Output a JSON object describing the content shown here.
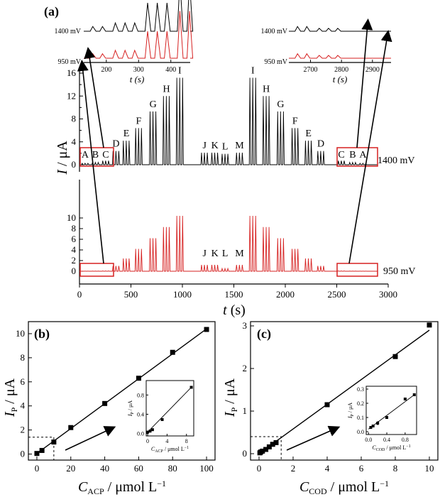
{
  "colors": {
    "black_trace": "#000000",
    "red_trace": "#d62020",
    "box": "#d62020"
  },
  "chart_data": [
    {
      "id": "a",
      "type": "line",
      "panel_label": "(a)",
      "xlabel": "t (s)",
      "ylabel": "I / μA",
      "xlim": [
        0,
        3000
      ],
      "x_ticks": [
        "0",
        "500",
        "1000",
        "1500",
        "2000",
        "2500",
        "3000"
      ],
      "series": [
        {
          "name": "1400 mV",
          "ylim": [
            0,
            16
          ],
          "y_ticks": [
            "0",
            "4",
            "8",
            "12",
            "16"
          ],
          "y_minor_ticks": [
            "2",
            "6",
            "10",
            "14"
          ],
          "injection_groups": [
            {
              "label": "A",
              "t_start": 20,
              "peak": 0.25
            },
            {
              "label": "B",
              "t_start": 120,
              "peak": 0.4
            },
            {
              "label": "C",
              "t_start": 220,
              "peak": 0.7
            },
            {
              "label": "D",
              "t_start": 320,
              "peak": 2.4
            },
            {
              "label": "E",
              "t_start": 420,
              "peak": 4.2
            },
            {
              "label": "F",
              "t_start": 540,
              "peak": 6.4
            },
            {
              "label": "G",
              "t_start": 680,
              "peak": 9.3
            },
            {
              "label": "H",
              "t_start": 810,
              "peak": 12.0
            },
            {
              "label": "I",
              "t_start": 940,
              "peak": 15.2
            },
            {
              "label": "J",
              "t_start": 1180,
              "peak": 2.1
            },
            {
              "label": "K",
              "t_start": 1280,
              "peak": 2.1
            },
            {
              "label": "L",
              "t_start": 1380,
              "peak": 1.9
            },
            {
              "label": "M",
              "t_start": 1520,
              "peak": 2.1
            },
            {
              "label": "I",
              "t_start": 1650,
              "peak": 15.2
            },
            {
              "label": "H",
              "t_start": 1780,
              "peak": 12.0
            },
            {
              "label": "G",
              "t_start": 1920,
              "peak": 9.3
            },
            {
              "label": "F",
              "t_start": 2060,
              "peak": 6.4
            },
            {
              "label": "E",
              "t_start": 2190,
              "peak": 4.2
            },
            {
              "label": "D",
              "t_start": 2310,
              "peak": 2.4
            },
            {
              "label": "C",
              "t_start": 2510,
              "peak": 0.7
            },
            {
              "label": "B",
              "t_start": 2620,
              "peak": 0.4
            },
            {
              "label": "A",
              "t_start": 2720,
              "peak": 0.25
            }
          ]
        },
        {
          "name": "950 mV",
          "ylim": [
            -1,
            12
          ],
          "y_ticks": [
            "0",
            "2",
            "4",
            "6",
            "8",
            "10"
          ],
          "labels": [
            "J",
            "K",
            "L",
            "M"
          ],
          "injection_groups": [
            {
              "t_start": 20,
              "peak": 0.02
            },
            {
              "t_start": 120,
              "peak": 0.03
            },
            {
              "t_start": 220,
              "peak": 0.06
            },
            {
              "t_start": 320,
              "peak": 1.0
            },
            {
              "t_start": 420,
              "peak": 2.4
            },
            {
              "t_start": 540,
              "peak": 4.2
            },
            {
              "t_start": 680,
              "peak": 6.2
            },
            {
              "t_start": 810,
              "peak": 8.3
            },
            {
              "t_start": 940,
              "peak": 10.4
            },
            {
              "t_start": 1180,
              "peak": 1.2
            },
            {
              "t_start": 1280,
              "peak": 1.2
            },
            {
              "t_start": 1380,
              "peak": 0.5
            },
            {
              "t_start": 1520,
              "peak": 1.2
            },
            {
              "t_start": 1650,
              "peak": 10.4
            },
            {
              "t_start": 1780,
              "peak": 8.3
            },
            {
              "t_start": 1920,
              "peak": 6.2
            },
            {
              "t_start": 2060,
              "peak": 4.2
            },
            {
              "t_start": 2190,
              "peak": 2.4
            },
            {
              "t_start": 2310,
              "peak": 1.0
            },
            {
              "t_start": 2510,
              "peak": 0.06
            },
            {
              "t_start": 2620,
              "peak": 0.03
            },
            {
              "t_start": 2720,
              "peak": 0.02
            }
          ]
        }
      ],
      "insets": [
        {
          "id": "left",
          "x_ticks": [
            "200",
            "300",
            "400"
          ],
          "xlim": [
            130,
            460
          ],
          "xlabel": "t (s)",
          "trace_labels": [
            "1400 mV",
            "950 mV"
          ]
        },
        {
          "id": "right",
          "x_ticks": [
            "2700",
            "2800",
            "2900"
          ],
          "xlim": [
            2630,
            2960
          ],
          "xlabel": "t (s)",
          "trace_labels": [
            "1400 mV",
            "950 mV"
          ]
        }
      ]
    },
    {
      "id": "b",
      "type": "scatter",
      "panel_label": "(b)",
      "xlabel": "C_ACP / μmol L⁻¹",
      "ylabel": "I_P / μA",
      "xlim": [
        -5,
        105
      ],
      "ylim": [
        -0.5,
        11
      ],
      "x_ticks": [
        "0",
        "20",
        "40",
        "60",
        "80",
        "100"
      ],
      "y_ticks": [
        "0",
        "2",
        "4",
        "6",
        "8",
        "10"
      ],
      "x": [
        0,
        3,
        10,
        20,
        40,
        60,
        80,
        100
      ],
      "y": [
        0.05,
        0.3,
        1.0,
        2.2,
        4.2,
        6.3,
        8.45,
        10.35
      ],
      "fit": {
        "slope": 0.1035,
        "intercept": 0.05
      },
      "inset": {
        "xlabel": "C_ACP / μmol L⁻¹",
        "ylabel": "I_P / μA",
        "xlim": [
          -0.3,
          9.5
        ],
        "ylim": [
          -0.05,
          1.1
        ],
        "x_ticks": [
          "0",
          "4",
          "8"
        ],
        "y_ticks": [
          "0.0",
          "0.4",
          "0.8"
        ],
        "x": [
          0,
          0.5,
          1,
          3,
          9
        ],
        "y": [
          0.03,
          0.05,
          0.08,
          0.29,
          0.96
        ],
        "err": [
          0.01,
          0.01,
          0.01,
          0.01,
          0.03
        ]
      }
    },
    {
      "id": "c",
      "type": "scatter",
      "panel_label": "(c)",
      "xlabel": "C_COD / μmol L⁻¹",
      "ylabel": "I_P / μA",
      "xlim": [
        -0.5,
        10.5
      ],
      "ylim": [
        -0.15,
        3.1
      ],
      "x_ticks": [
        "0",
        "2",
        "4",
        "6",
        "8",
        "10"
      ],
      "y_ticks": [
        "0",
        "1",
        "2",
        "3"
      ],
      "x": [
        0.05,
        0.1,
        0.2,
        0.4,
        0.6,
        0.8,
        1.0,
        4,
        8,
        10
      ],
      "y": [
        0.02,
        0.04,
        0.06,
        0.1,
        0.16,
        0.22,
        0.26,
        1.15,
        2.28,
        3.02
      ],
      "fit": {
        "slope": 0.29,
        "intercept": 0.0
      },
      "inset": {
        "xlabel": "C_COD / μmol L⁻¹",
        "ylabel": "I_P / μA",
        "xlim": [
          -0.05,
          1.05
        ],
        "ylim": [
          -0.02,
          0.32
        ],
        "x_ticks": [
          "0.0",
          "0.4",
          "0.8"
        ],
        "y_ticks": [
          "0.0",
          "0.1",
          "0.2",
          "0.3"
        ],
        "x": [
          0.05,
          0.1,
          0.2,
          0.4,
          0.8,
          1.0
        ],
        "y": [
          0.03,
          0.04,
          0.06,
          0.1,
          0.23,
          0.26
        ],
        "err": [
          0.01,
          0.01,
          0.015,
          0.01,
          0.01,
          0.01
        ]
      }
    }
  ]
}
